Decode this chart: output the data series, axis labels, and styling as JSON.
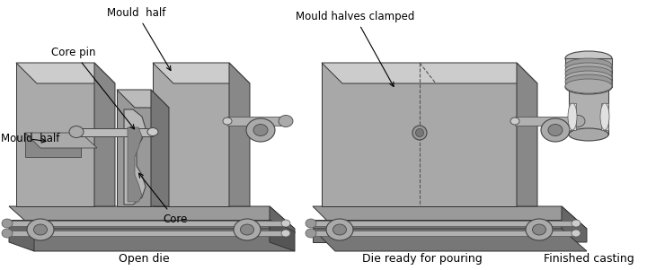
{
  "background_color": "#ffffff",
  "figure_width": 7.2,
  "figure_height": 3.01,
  "dpi": 100,
  "annotation_fontsize": 8.5,
  "label_fontsize": 9.0,
  "text_color": "#000000",
  "labels": {
    "mould_half_top": "Mould  half",
    "core_pin": "Core pin",
    "mould_half_left": "Mould  half",
    "core": "Core",
    "mould_halves_clamped": "Mould halves clamped",
    "open_die": "Open die",
    "die_ready": "Die ready for pouring",
    "finished_casting": "Finished casting"
  },
  "colors": {
    "base_top": "#9a9a9a",
    "base_front": "#777777",
    "base_side": "#666666",
    "block_front": "#aaaaaa",
    "block_top": "#cccccc",
    "block_side": "#888888",
    "core_color": "#b0b0b0",
    "rod_color": "#b0b0b0",
    "disc_outer": "#aaaaaa",
    "disc_inner": "#888888",
    "edge": "#333333",
    "edge2": "#444444"
  }
}
